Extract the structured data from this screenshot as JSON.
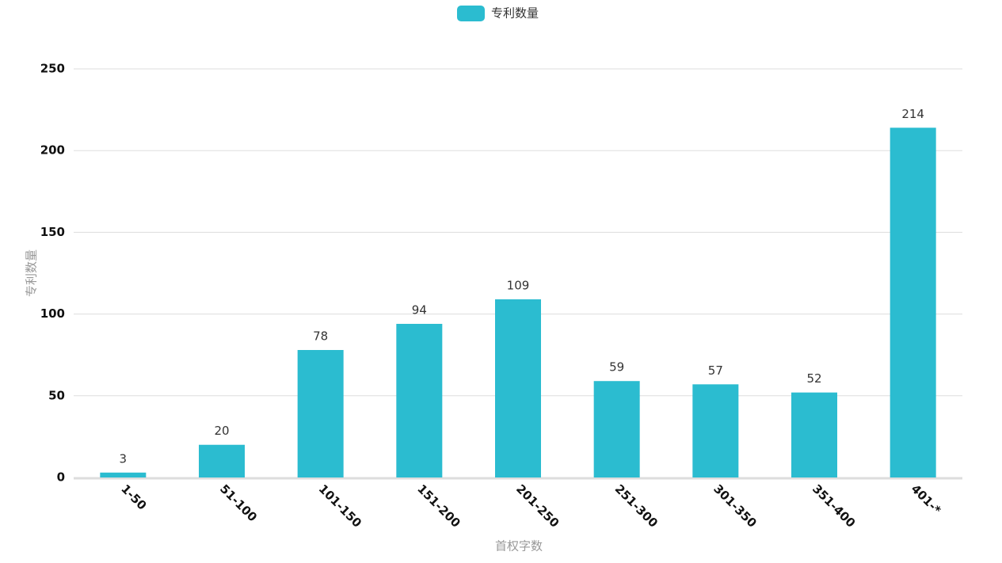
{
  "chart_data": {
    "type": "bar",
    "x_label": "首权字数",
    "y_label": "专利数量",
    "categories": [
      "1-50",
      "51-100",
      "101-150",
      "151-200",
      "201-250",
      "251-300",
      "301-350",
      "351-400",
      "401-*"
    ],
    "series": [
      {
        "name": "专利数量",
        "color": "#2bbcd0",
        "values": [
          3,
          20,
          78,
          94,
          109,
          59,
          57,
          52,
          214
        ]
      }
    ],
    "ylim": [
      0,
      250
    ],
    "yticks": [
      0,
      50,
      100,
      150,
      200,
      250
    ],
    "grid": true,
    "legend": "top",
    "data_labels": true
  }
}
